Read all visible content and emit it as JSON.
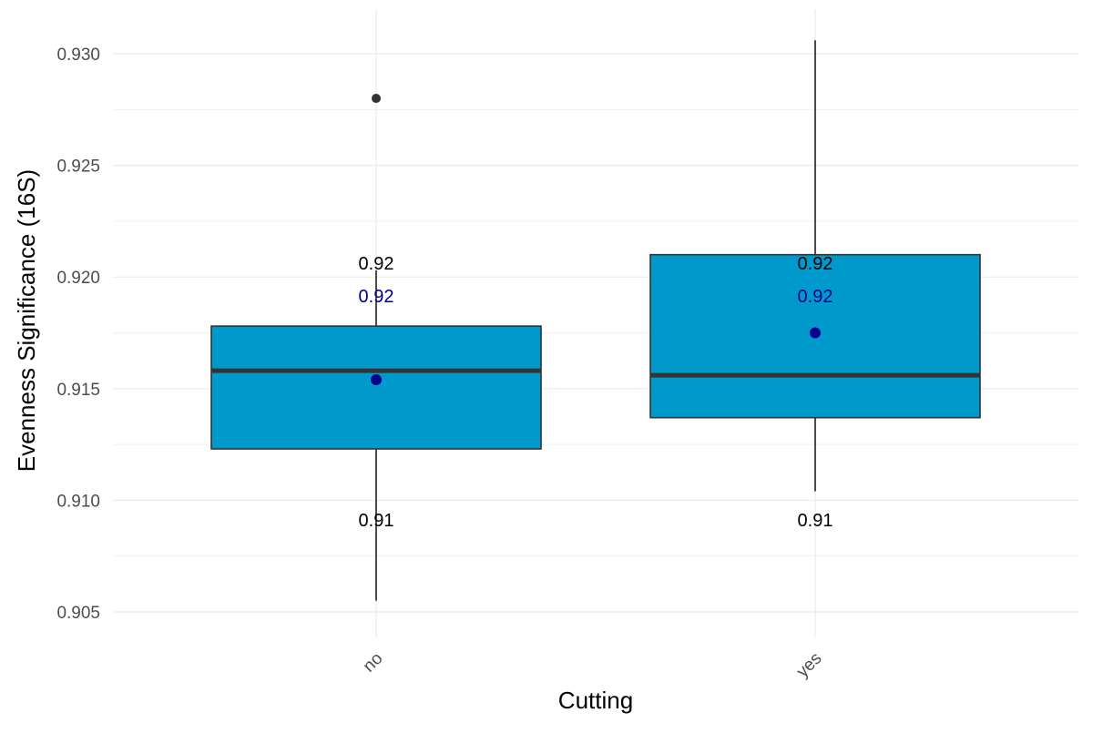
{
  "chart_data": {
    "type": "boxplot",
    "title": "",
    "xlabel": "Cutting",
    "ylabel": "Evenness Significance (16S)",
    "ylim": [
      0.9035,
      0.9315
    ],
    "yticks": [
      0.905,
      0.91,
      0.915,
      0.92,
      0.925,
      0.93
    ],
    "ytick_labels": [
      "0.905",
      "0.910",
      "0.915",
      "0.920",
      "0.925",
      "0.930"
    ],
    "grid": true,
    "categories": [
      "no",
      "yes"
    ],
    "boxes": [
      {
        "category": "no",
        "whisker_low": 0.9055,
        "q1": 0.9123,
        "median": 0.9158,
        "q3": 0.9178,
        "whisker_high": 0.9203,
        "mean": 0.9154,
        "outliers": [
          0.928
        ],
        "label_upper": "0.92",
        "label_mean": "0.92",
        "label_lower": "0.91"
      },
      {
        "category": "yes",
        "whisker_low": 0.9104,
        "q1": 0.9137,
        "median": 0.9156,
        "q3": 0.921,
        "whisker_high": 0.9306,
        "mean": 0.9175,
        "outliers": [],
        "label_upper": "0.92",
        "label_mean": "0.92",
        "label_lower": "0.91"
      }
    ],
    "colors": {
      "box_fill": "#0099CC",
      "box_border": "#333333",
      "median_line": "#333333",
      "whisker": "#000000",
      "outlier": "#333333",
      "mean_point": "#00008B",
      "label_upper": "#000000",
      "label_mean": "#00008B",
      "label_lower": "#000000",
      "grid": "#ebebeb"
    }
  }
}
